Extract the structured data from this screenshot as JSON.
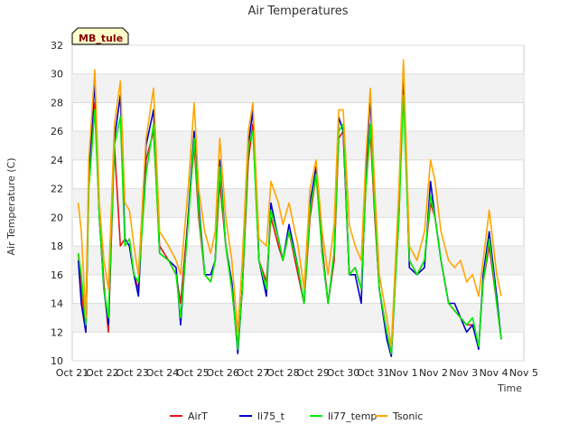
{
  "chart_data": {
    "type": "line",
    "title": "Air Temperatures",
    "xlabel": "Time",
    "ylabel": "Air Temperature (C)",
    "station_label": "MB_tule",
    "xlim_days": [
      0,
      15
    ],
    "ylim": [
      10,
      32
    ],
    "yticks": [
      10,
      12,
      14,
      16,
      18,
      20,
      22,
      24,
      26,
      28,
      30,
      32
    ],
    "xtick_labels": [
      "Oct 21",
      "Oct 22",
      "Oct 23",
      "Oct 24",
      "Oct 25",
      "Oct 26",
      "Oct 27",
      "Oct 28",
      "Oct 29",
      "Oct 30",
      "Oct 31",
      "Nov 1",
      "Nov 2",
      "Nov 3",
      "Nov 4",
      "Nov 5"
    ],
    "grid": true,
    "legend_position": "bottom",
    "x": [
      0.2,
      0.3,
      0.45,
      0.55,
      0.75,
      0.9,
      1.05,
      1.2,
      1.4,
      1.6,
      1.75,
      1.9,
      2.05,
      2.2,
      2.45,
      2.7,
      2.9,
      3.2,
      3.45,
      3.6,
      3.85,
      4.05,
      4.2,
      4.4,
      4.6,
      4.75,
      4.9,
      5.1,
      5.3,
      5.5,
      5.65,
      5.85,
      6.0,
      6.2,
      6.45,
      6.6,
      6.85,
      7.0,
      7.2,
      7.5,
      7.7,
      7.9,
      8.1,
      8.3,
      8.5,
      8.7,
      8.85,
      9.0,
      9.2,
      9.4,
      9.6,
      9.75,
      9.9,
      10.05,
      10.2,
      10.45,
      10.6,
      10.85,
      11.0,
      11.2,
      11.45,
      11.7,
      11.9,
      12.05,
      12.25,
      12.5,
      12.7,
      12.9,
      13.1,
      13.3,
      13.5,
      13.65,
      13.85,
      14.1,
      14.25
    ],
    "series": [
      {
        "name": "AirT",
        "color": "#ee1111",
        "values": [
          17.5,
          15,
          12,
          22,
          28,
          20,
          15.5,
          12,
          25,
          18,
          18.5,
          18,
          16,
          15,
          24,
          26,
          18,
          17,
          16,
          14,
          20,
          25,
          20,
          16,
          15.5,
          17,
          22.5,
          18,
          15,
          11,
          15,
          24,
          26.5,
          17,
          15.5,
          20,
          18,
          17,
          19,
          16,
          14,
          20,
          23,
          18,
          14,
          17,
          25.5,
          26,
          16,
          16.5,
          15,
          22,
          26,
          20,
          15,
          12,
          10.5,
          20,
          30,
          17,
          16,
          17,
          21,
          20,
          17,
          14,
          13.5,
          13,
          12.5,
          12.5,
          11,
          15.5,
          18,
          14,
          11.5
        ]
      },
      {
        "name": "li75_t",
        "color": "#0000cc",
        "values": [
          17,
          14,
          12,
          23,
          29.5,
          20,
          15,
          12.5,
          25.5,
          28.5,
          18.5,
          18,
          16,
          14.5,
          25,
          27.5,
          17.5,
          17,
          16.5,
          12.5,
          20,
          26,
          21,
          16,
          16,
          17,
          24,
          18,
          15.5,
          10.5,
          15,
          25,
          27.5,
          17,
          14.5,
          21,
          18.5,
          17,
          19.5,
          16.5,
          14,
          21,
          23.5,
          17.5,
          14,
          17.5,
          27,
          26,
          16,
          16,
          14,
          23,
          28.5,
          20.5,
          15,
          11.5,
          10.3,
          21,
          30.5,
          16.5,
          16,
          16.5,
          22.5,
          20,
          17,
          14,
          14,
          13,
          12,
          12.5,
          10.8,
          16,
          19,
          14.5,
          11.5
        ]
      },
      {
        "name": "li77_temp",
        "color": "#00ee00",
        "values": [
          17.5,
          16,
          12.5,
          22,
          27.5,
          20,
          15,
          13,
          25,
          27,
          18,
          18.5,
          16,
          15.5,
          23,
          26.5,
          17.5,
          17,
          16,
          13,
          19.5,
          25.5,
          20.5,
          16,
          15.5,
          17,
          23.5,
          18,
          15,
          10.8,
          15,
          25,
          26,
          17,
          15,
          20.5,
          18.5,
          17,
          19,
          16.5,
          14,
          20.5,
          23,
          17.5,
          14,
          17.5,
          26,
          26.5,
          16,
          16.5,
          15,
          22,
          26.5,
          20.5,
          15,
          12,
          10.5,
          20,
          28.5,
          17,
          16,
          17,
          21.5,
          20,
          17,
          14,
          13.5,
          13,
          12.5,
          13,
          11,
          15.5,
          18.5,
          14,
          11.5
        ]
      },
      {
        "name": "Tsonic",
        "color": "#ffa500",
        "values": [
          21,
          19,
          13,
          24,
          30.3,
          21,
          17,
          15,
          26.5,
          29.5,
          21,
          20.5,
          18,
          16,
          25.5,
          29,
          19,
          18,
          17,
          16,
          22,
          28,
          22,
          19,
          17.5,
          19,
          25.5,
          20,
          17,
          12,
          17,
          26,
          28,
          18.5,
          18,
          22.5,
          21,
          19.5,
          21,
          18,
          15,
          22,
          24,
          19,
          16,
          19.5,
          27.5,
          27.5,
          19.5,
          18,
          17,
          24,
          29,
          22,
          16,
          13,
          11,
          22,
          31,
          18,
          17,
          19,
          24,
          22.5,
          19,
          17,
          16.5,
          17,
          15.5,
          16,
          14.5,
          17,
          20.5,
          16,
          14.5
        ]
      }
    ]
  }
}
